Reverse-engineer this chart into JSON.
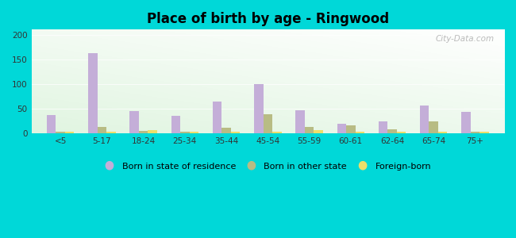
{
  "title": "Place of birth by age - Ringwood",
  "categories": [
    "<5",
    "5-17",
    "18-24",
    "25-34",
    "35-44",
    "45-54",
    "55-59",
    "60-61",
    "62-64",
    "65-74",
    "75+"
  ],
  "born_in_state": [
    37,
    163,
    45,
    35,
    64,
    100,
    47,
    19,
    25,
    57,
    43
  ],
  "born_other_state": [
    3,
    13,
    5,
    4,
    12,
    38,
    13,
    17,
    8,
    25,
    4
  ],
  "foreign_born": [
    3,
    3,
    6,
    3,
    3,
    3,
    6,
    3,
    3,
    3,
    4
  ],
  "bar_colors": {
    "born_in_state": "#c4aed8",
    "born_other_state": "#b8bc84",
    "foreign_born": "#eedf6a"
  },
  "ylim": [
    0,
    210
  ],
  "yticks": [
    0,
    50,
    100,
    150,
    200
  ],
  "outer_bg": "#00d8d8",
  "legend_labels": [
    "Born in state of residence",
    "Born in other state",
    "Foreign-born"
  ],
  "watermark": "City-Data.com"
}
